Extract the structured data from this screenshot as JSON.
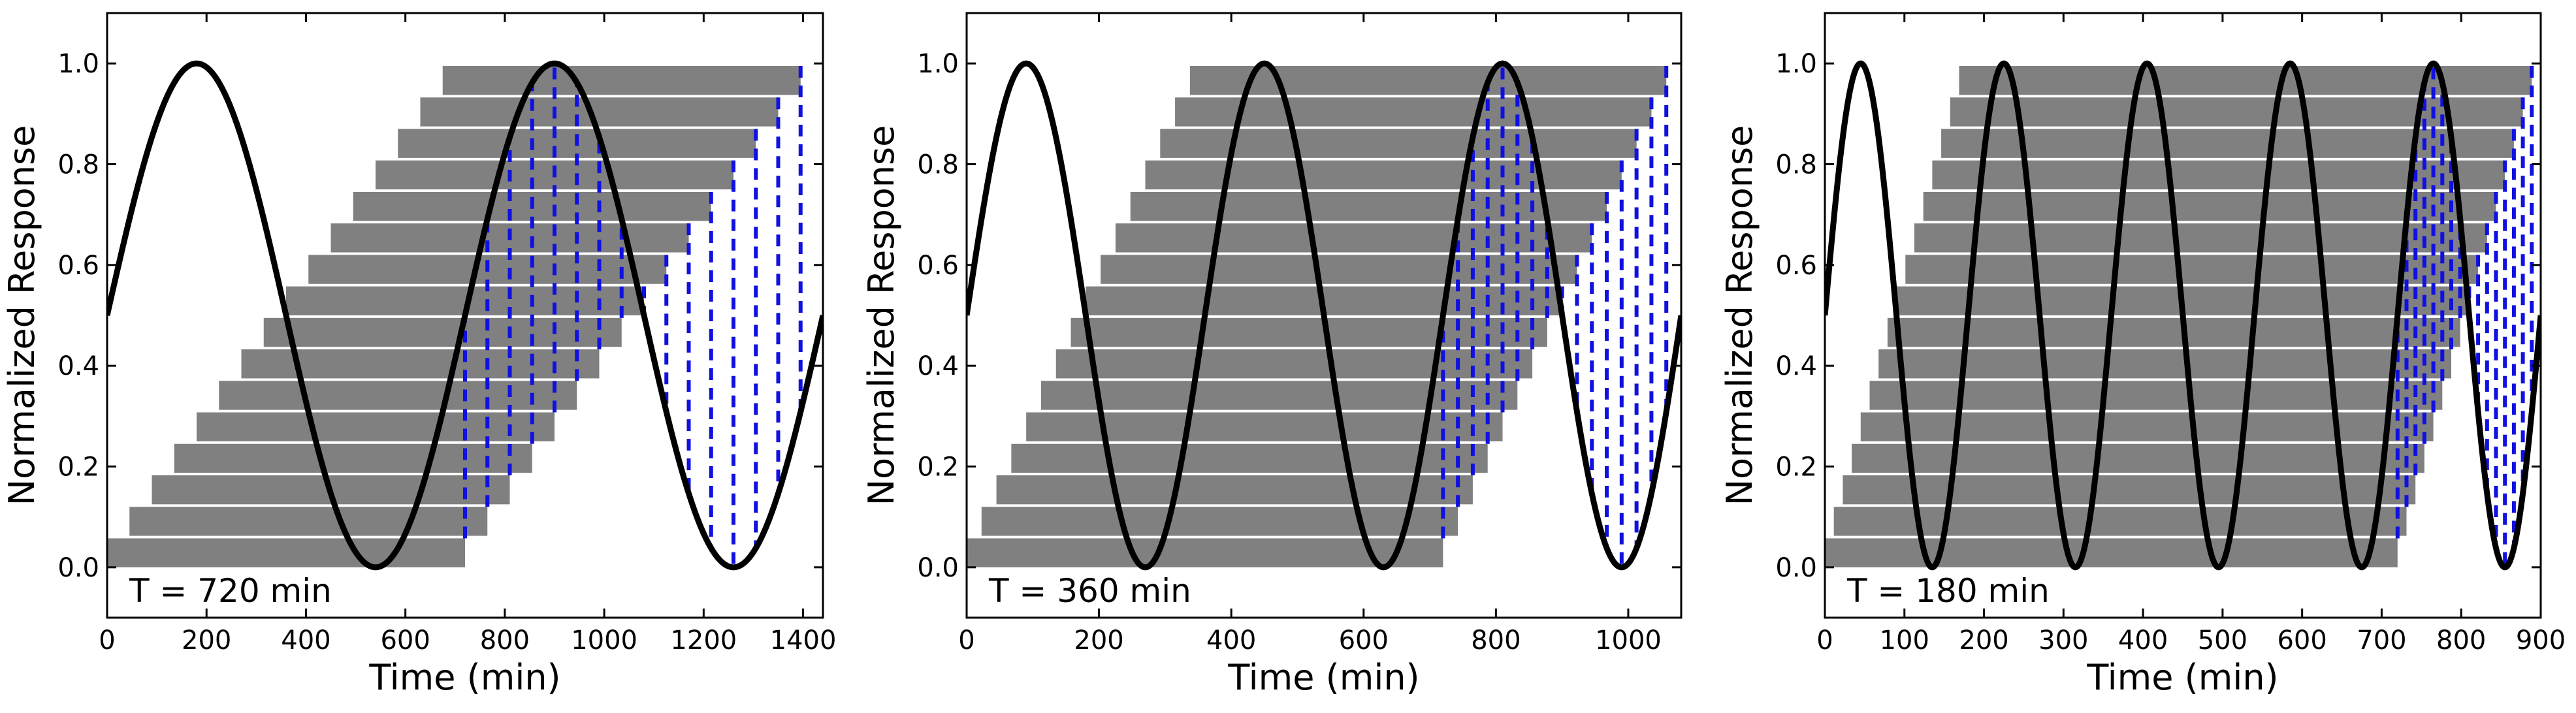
{
  "chart_data": [
    {
      "type": "line",
      "annotation": "T = 720 min",
      "xlabel": "Time (min)",
      "ylabel": "Normalized Response",
      "xlim": [
        0,
        1440
      ],
      "ylim": [
        -0.1,
        1.1
      ],
      "xticks": [
        0,
        200,
        400,
        600,
        800,
        1000,
        1200,
        1400
      ],
      "yticks": [
        0.0,
        0.2,
        0.4,
        0.6,
        0.8,
        1.0
      ],
      "ytick_labels": [
        "0.0",
        "0.2",
        "0.4",
        "0.6",
        "0.8",
        "1.0"
      ],
      "period": 720,
      "series": [
        {
          "values_description_free": true,
          "curve": "0.5 + 0.5*sin(2*pi*t/T)",
          "t_range": [
            0,
            1440
          ]
        }
      ],
      "bars": {
        "count": 16,
        "duration": 720,
        "start_step": 45,
        "first_start": 0,
        "y_step": 0.0625,
        "height": 0.0575
      },
      "sample_lines_x": [
        720,
        765,
        810,
        855,
        900,
        945,
        990,
        1035,
        1080,
        1125,
        1170,
        1215,
        1260,
        1305,
        1350,
        1395
      ]
    },
    {
      "type": "line",
      "annotation": "T = 360 min",
      "xlabel": "Time (min)",
      "ylabel": "Normalized Response",
      "xlim": [
        0,
        1080
      ],
      "ylim": [
        -0.1,
        1.1
      ],
      "xticks": [
        0,
        200,
        400,
        600,
        800,
        1000
      ],
      "yticks": [
        0.0,
        0.2,
        0.4,
        0.6,
        0.8,
        1.0
      ],
      "ytick_labels": [
        "0.0",
        "0.2",
        "0.4",
        "0.6",
        "0.8",
        "1.0"
      ],
      "period": 360,
      "series": [
        {
          "curve": "0.5 + 0.5*sin(2*pi*t/T)",
          "t_range": [
            0,
            1080
          ]
        }
      ],
      "bars": {
        "count": 16,
        "duration": 720,
        "start_step": 22.5,
        "first_start": 0,
        "y_step": 0.0625,
        "height": 0.0575
      },
      "sample_lines_x": [
        720,
        742.5,
        765,
        787.5,
        810,
        832.5,
        855,
        877.5,
        900,
        922.5,
        945,
        967.5,
        990,
        1012.5,
        1035,
        1057.5
      ]
    },
    {
      "type": "line",
      "annotation": "T = 180 min",
      "xlabel": "Time (min)",
      "ylabel": "Normalized Response",
      "xlim": [
        0,
        900
      ],
      "ylim": [
        -0.1,
        1.1
      ],
      "xticks": [
        0,
        100,
        200,
        300,
        400,
        500,
        600,
        700,
        800,
        900
      ],
      "yticks": [
        0.0,
        0.2,
        0.4,
        0.6,
        0.8,
        1.0
      ],
      "ytick_labels": [
        "0.0",
        "0.2",
        "0.4",
        "0.6",
        "0.8",
        "1.0"
      ],
      "period": 180,
      "series": [
        {
          "curve": "0.5 + 0.5*sin(2*pi*t/T)",
          "t_range": [
            0,
            900
          ]
        }
      ],
      "bars": {
        "count": 16,
        "duration": 720,
        "start_step": 11.25,
        "first_start": 0,
        "y_step": 0.0625,
        "height": 0.0575
      },
      "sample_lines_x": [
        720,
        731.25,
        742.5,
        753.75,
        765,
        776.25,
        787.5,
        798.75,
        810,
        821.25,
        832.5,
        843.75,
        855,
        866.25,
        877.5,
        888.75
      ]
    }
  ],
  "colors": {
    "bar": "#808080",
    "curve": "#000000",
    "sample_line": "#1010e0",
    "axes": "#000000"
  }
}
